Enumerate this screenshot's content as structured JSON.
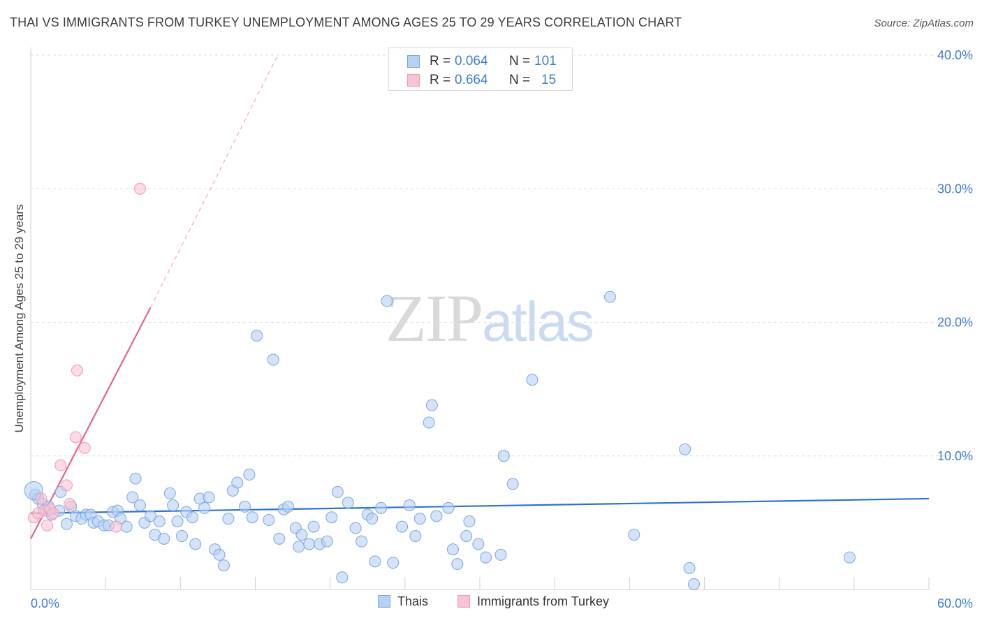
{
  "title": "THAI VS IMMIGRANTS FROM TURKEY UNEMPLOYMENT AMONG AGES 25 TO 29 YEARS CORRELATION CHART",
  "source": "Source: ZipAtlas.com",
  "watermark": {
    "zip": "ZIP",
    "atlas": "atlas"
  },
  "colors": {
    "thai_fill": "#b7d1f3",
    "thai_stroke": "#7aa6e3",
    "thai_line": "#2f72d3",
    "turkey_fill": "#f8c3d2",
    "turkey_stroke": "#ee9ab3",
    "turkey_line": "#e8628d",
    "tick_label": "#3e7cd6"
  },
  "legend": [
    {
      "r_label": "R =",
      "r_value": "0.064",
      "n_label": "N =",
      "n_value": "101"
    },
    {
      "r_label": "R =",
      "r_value": "0.664",
      "n_label": "N =",
      "n_value": "15"
    }
  ],
  "bottom_legend": [
    "Thais",
    "Immigrants from Turkey"
  ],
  "chart_data": {
    "type": "scatter",
    "title": "THAI VS IMMIGRANTS FROM TURKEY UNEMPLOYMENT AMONG AGES 25 TO 29 YEARS CORRELATION CHART",
    "xlabel": "",
    "ylabel": "Unemployment Among Ages 25 to 29 years",
    "xlim": [
      0,
      60
    ],
    "ylim": [
      0,
      40
    ],
    "x_tick_labels": [
      "0.0%",
      "60.0%"
    ],
    "y_ticks": [
      10,
      20,
      30,
      40
    ],
    "y_tick_labels": [
      "10.0%",
      "20.0%",
      "30.0%",
      "40.0%"
    ],
    "grid": true,
    "series": [
      {
        "name": "Thais",
        "R": 0.064,
        "N": 101,
        "trend": {
          "x": [
            0,
            60
          ],
          "y": [
            5.7,
            6.8
          ]
        },
        "points": [
          [
            0.3,
            7.1
          ],
          [
            0.5,
            6.8
          ],
          [
            0.8,
            6.4
          ],
          [
            1.0,
            6.0
          ],
          [
            1.2,
            6.2
          ],
          [
            1.4,
            5.6
          ],
          [
            1.9,
            5.9
          ],
          [
            2.0,
            7.3
          ],
          [
            2.4,
            4.9
          ],
          [
            2.7,
            6.2
          ],
          [
            3.0,
            5.5
          ],
          [
            3.4,
            5.3
          ],
          [
            3.7,
            5.6
          ],
          [
            4.0,
            5.6
          ],
          [
            4.2,
            5.0
          ],
          [
            4.5,
            5.1
          ],
          [
            4.9,
            4.8
          ],
          [
            5.2,
            4.8
          ],
          [
            5.5,
            5.8
          ],
          [
            5.8,
            5.9
          ],
          [
            6.0,
            5.3
          ],
          [
            6.4,
            4.7
          ],
          [
            6.8,
            6.9
          ],
          [
            7.0,
            8.3
          ],
          [
            7.3,
            6.3
          ],
          [
            7.6,
            5.0
          ],
          [
            8.0,
            5.5
          ],
          [
            8.3,
            4.1
          ],
          [
            8.6,
            5.1
          ],
          [
            8.9,
            3.8
          ],
          [
            9.3,
            7.2
          ],
          [
            9.5,
            6.3
          ],
          [
            9.8,
            5.1
          ],
          [
            10.1,
            4.0
          ],
          [
            10.4,
            5.8
          ],
          [
            10.8,
            5.4
          ],
          [
            11.0,
            3.4
          ],
          [
            11.3,
            6.8
          ],
          [
            11.6,
            6.1
          ],
          [
            11.9,
            6.9
          ],
          [
            12.3,
            3.0
          ],
          [
            12.6,
            2.6
          ],
          [
            12.9,
            1.8
          ],
          [
            13.2,
            5.3
          ],
          [
            13.5,
            7.4
          ],
          [
            13.8,
            8.0
          ],
          [
            14.3,
            6.2
          ],
          [
            14.6,
            8.6
          ],
          [
            14.8,
            5.4
          ],
          [
            15.1,
            19.0
          ],
          [
            15.9,
            5.2
          ],
          [
            16.2,
            17.2
          ],
          [
            16.6,
            3.8
          ],
          [
            16.9,
            6.0
          ],
          [
            17.2,
            6.2
          ],
          [
            17.7,
            4.6
          ],
          [
            17.9,
            3.2
          ],
          [
            18.1,
            4.1
          ],
          [
            18.6,
            3.4
          ],
          [
            18.9,
            4.7
          ],
          [
            19.3,
            3.4
          ],
          [
            19.8,
            3.6
          ],
          [
            20.1,
            5.4
          ],
          [
            20.5,
            7.3
          ],
          [
            20.8,
            0.9
          ],
          [
            21.2,
            6.5
          ],
          [
            21.7,
            4.6
          ],
          [
            22.1,
            3.6
          ],
          [
            22.5,
            5.6
          ],
          [
            22.8,
            5.3
          ],
          [
            23.0,
            2.1
          ],
          [
            23.4,
            6.1
          ],
          [
            23.8,
            21.6
          ],
          [
            24.2,
            2.0
          ],
          [
            24.8,
            4.7
          ],
          [
            25.3,
            6.3
          ],
          [
            25.7,
            4.0
          ],
          [
            26.0,
            5.3
          ],
          [
            26.6,
            12.5
          ],
          [
            26.8,
            13.8
          ],
          [
            27.1,
            5.5
          ],
          [
            27.9,
            6.1
          ],
          [
            28.2,
            3.0
          ],
          [
            28.5,
            1.9
          ],
          [
            29.1,
            4.0
          ],
          [
            29.3,
            5.1
          ],
          [
            29.9,
            3.4
          ],
          [
            30.4,
            2.4
          ],
          [
            31.4,
            2.6
          ],
          [
            31.6,
            10.0
          ],
          [
            32.2,
            7.9
          ],
          [
            33.5,
            15.7
          ],
          [
            38.7,
            21.9
          ],
          [
            40.3,
            4.1
          ],
          [
            43.7,
            10.5
          ],
          [
            44.0,
            1.6
          ],
          [
            44.3,
            0.4
          ],
          [
            54.7,
            2.4
          ]
        ]
      },
      {
        "name": "Immigrants from Turkey",
        "R": 0.664,
        "N": 15,
        "trend": {
          "x": [
            0,
            8.0
          ],
          "y": [
            3.8,
            21.1
          ],
          "dashed_extension": {
            "x": [
              8.0,
              16.5
            ],
            "y": [
              21.1,
              40.0
            ]
          }
        },
        "points": [
          [
            0.2,
            5.4
          ],
          [
            0.5,
            5.7
          ],
          [
            0.7,
            6.8
          ],
          [
            0.9,
            5.9
          ],
          [
            1.1,
            4.8
          ],
          [
            1.3,
            6.0
          ],
          [
            1.5,
            5.7
          ],
          [
            2.0,
            9.3
          ],
          [
            2.4,
            7.8
          ],
          [
            2.6,
            6.4
          ],
          [
            3.0,
            11.4
          ],
          [
            3.1,
            16.4
          ],
          [
            3.6,
            10.6
          ],
          [
            5.7,
            4.7
          ],
          [
            7.3,
            30.0
          ]
        ]
      }
    ]
  }
}
